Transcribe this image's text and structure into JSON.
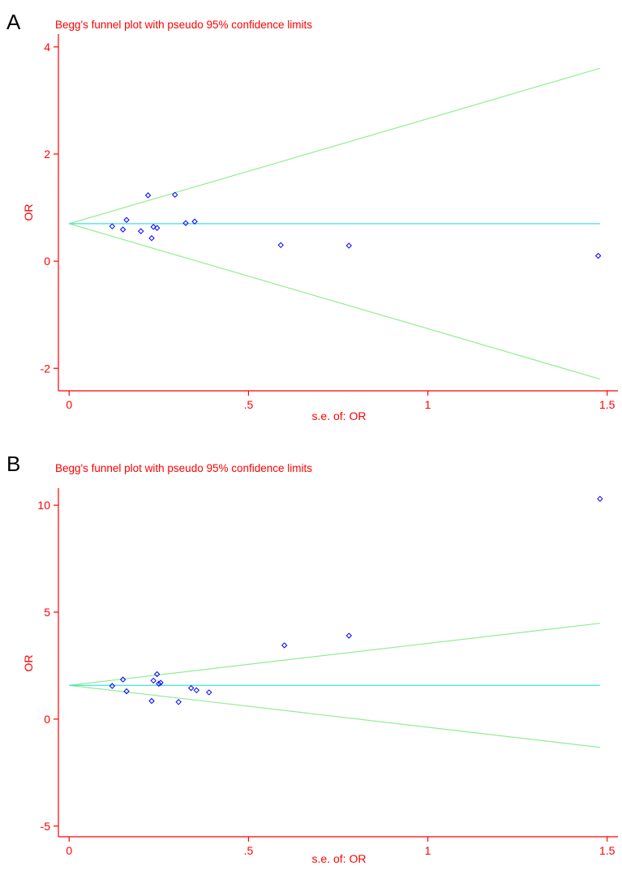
{
  "colors": {
    "axis": "#ff0000",
    "text": "#ff0000",
    "points": "#0000ff",
    "confidence_limits": "#90ee90",
    "pooled_estimate": "#40e0e0"
  },
  "chart_data": [
    {
      "panel": "A",
      "type": "scatter",
      "title": "Begg's funnel plot with pseudo 95% confidence limits",
      "xlabel": "s.e. of: OR",
      "ylabel": "OR",
      "x_ticks": [
        0,
        0.5,
        1,
        1.5
      ],
      "x_tick_labels": [
        "0",
        ".5",
        "1",
        "1.5"
      ],
      "y_ticks": [
        -2,
        0,
        2,
        4
      ],
      "y_tick_labels": [
        "-2",
        "0",
        "2",
        "4"
      ],
      "xlim": [
        -0.03,
        1.53
      ],
      "ylim": [
        -2.42,
        4.24
      ],
      "pooled_estimate": 0.7,
      "funnel_x_max": 1.48,
      "funnel_slope": 1.96,
      "points": [
        {
          "x": 0.12,
          "y": 0.65
        },
        {
          "x": 0.15,
          "y": 0.59
        },
        {
          "x": 0.16,
          "y": 0.77
        },
        {
          "x": 0.2,
          "y": 0.56
        },
        {
          "x": 0.22,
          "y": 1.23
        },
        {
          "x": 0.23,
          "y": 0.43
        },
        {
          "x": 0.235,
          "y": 0.64
        },
        {
          "x": 0.245,
          "y": 0.62
        },
        {
          "x": 0.295,
          "y": 1.24
        },
        {
          "x": 0.325,
          "y": 0.71
        },
        {
          "x": 0.35,
          "y": 0.74
        },
        {
          "x": 0.59,
          "y": 0.3
        },
        {
          "x": 0.78,
          "y": 0.29
        },
        {
          "x": 1.475,
          "y": 0.1
        }
      ]
    },
    {
      "panel": "B",
      "type": "scatter",
      "title": "Begg's funnel plot with pseudo 95% confidence limits",
      "xlabel": "s.e. of: OR",
      "ylabel": "OR",
      "x_ticks": [
        0,
        0.5,
        1,
        1.5
      ],
      "x_tick_labels": [
        "0",
        ".5",
        "1",
        "1.5"
      ],
      "y_ticks": [
        -5,
        0,
        5,
        10
      ],
      "y_tick_labels": [
        "-5",
        "0",
        "5",
        "10"
      ],
      "xlim": [
        -0.03,
        1.53
      ],
      "ylim": [
        -5.5,
        10.8
      ],
      "pooled_estimate": 1.58,
      "funnel_x_max": 1.48,
      "funnel_slope": 1.96,
      "points": [
        {
          "x": 0.12,
          "y": 1.55
        },
        {
          "x": 0.15,
          "y": 1.85
        },
        {
          "x": 0.16,
          "y": 1.3
        },
        {
          "x": 0.23,
          "y": 0.85
        },
        {
          "x": 0.235,
          "y": 1.8
        },
        {
          "x": 0.245,
          "y": 2.1
        },
        {
          "x": 0.25,
          "y": 1.65
        },
        {
          "x": 0.255,
          "y": 1.7
        },
        {
          "x": 0.305,
          "y": 0.8
        },
        {
          "x": 0.34,
          "y": 1.45
        },
        {
          "x": 0.355,
          "y": 1.35
        },
        {
          "x": 0.39,
          "y": 1.25
        },
        {
          "x": 0.6,
          "y": 3.45
        },
        {
          "x": 0.78,
          "y": 3.9
        },
        {
          "x": 1.48,
          "y": 10.3
        }
      ]
    }
  ]
}
